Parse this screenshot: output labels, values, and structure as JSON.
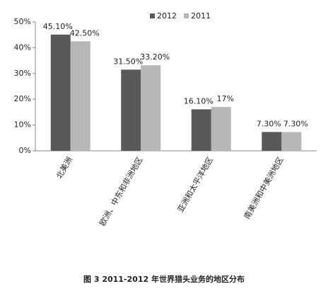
{
  "chart_data": {
    "type": "bar",
    "caption": "图 3 2011-2012 年世界猎头业务的地区分布",
    "categories": [
      "北美洲",
      "欧洲、中东和非洲地区",
      "亚洲和太平洋地区",
      "南美洲和中美洲地区"
    ],
    "series": [
      {
        "name": "2012",
        "color": "#595959",
        "values": [
          45.1,
          31.5,
          16.1,
          7.3
        ],
        "value_labels": [
          "45.10%",
          "31.50%",
          "16.10%",
          "7.30%"
        ]
      },
      {
        "name": "2011",
        "color": "#b7b7b7",
        "values": [
          42.5,
          33.2,
          17,
          7.3
        ],
        "value_labels": [
          "42.50%",
          "33.20%",
          "17%",
          "7.30%"
        ]
      }
    ],
    "ylim": [
      0,
      50
    ],
    "yticks": [
      {
        "value": 0,
        "label": "0%"
      },
      {
        "value": 10,
        "label": "10%"
      },
      {
        "value": 20,
        "label": "20%"
      },
      {
        "value": 30,
        "label": "30%"
      },
      {
        "value": 40,
        "label": "40%"
      },
      {
        "value": 50,
        "label": "50%"
      }
    ],
    "grid": false
  }
}
